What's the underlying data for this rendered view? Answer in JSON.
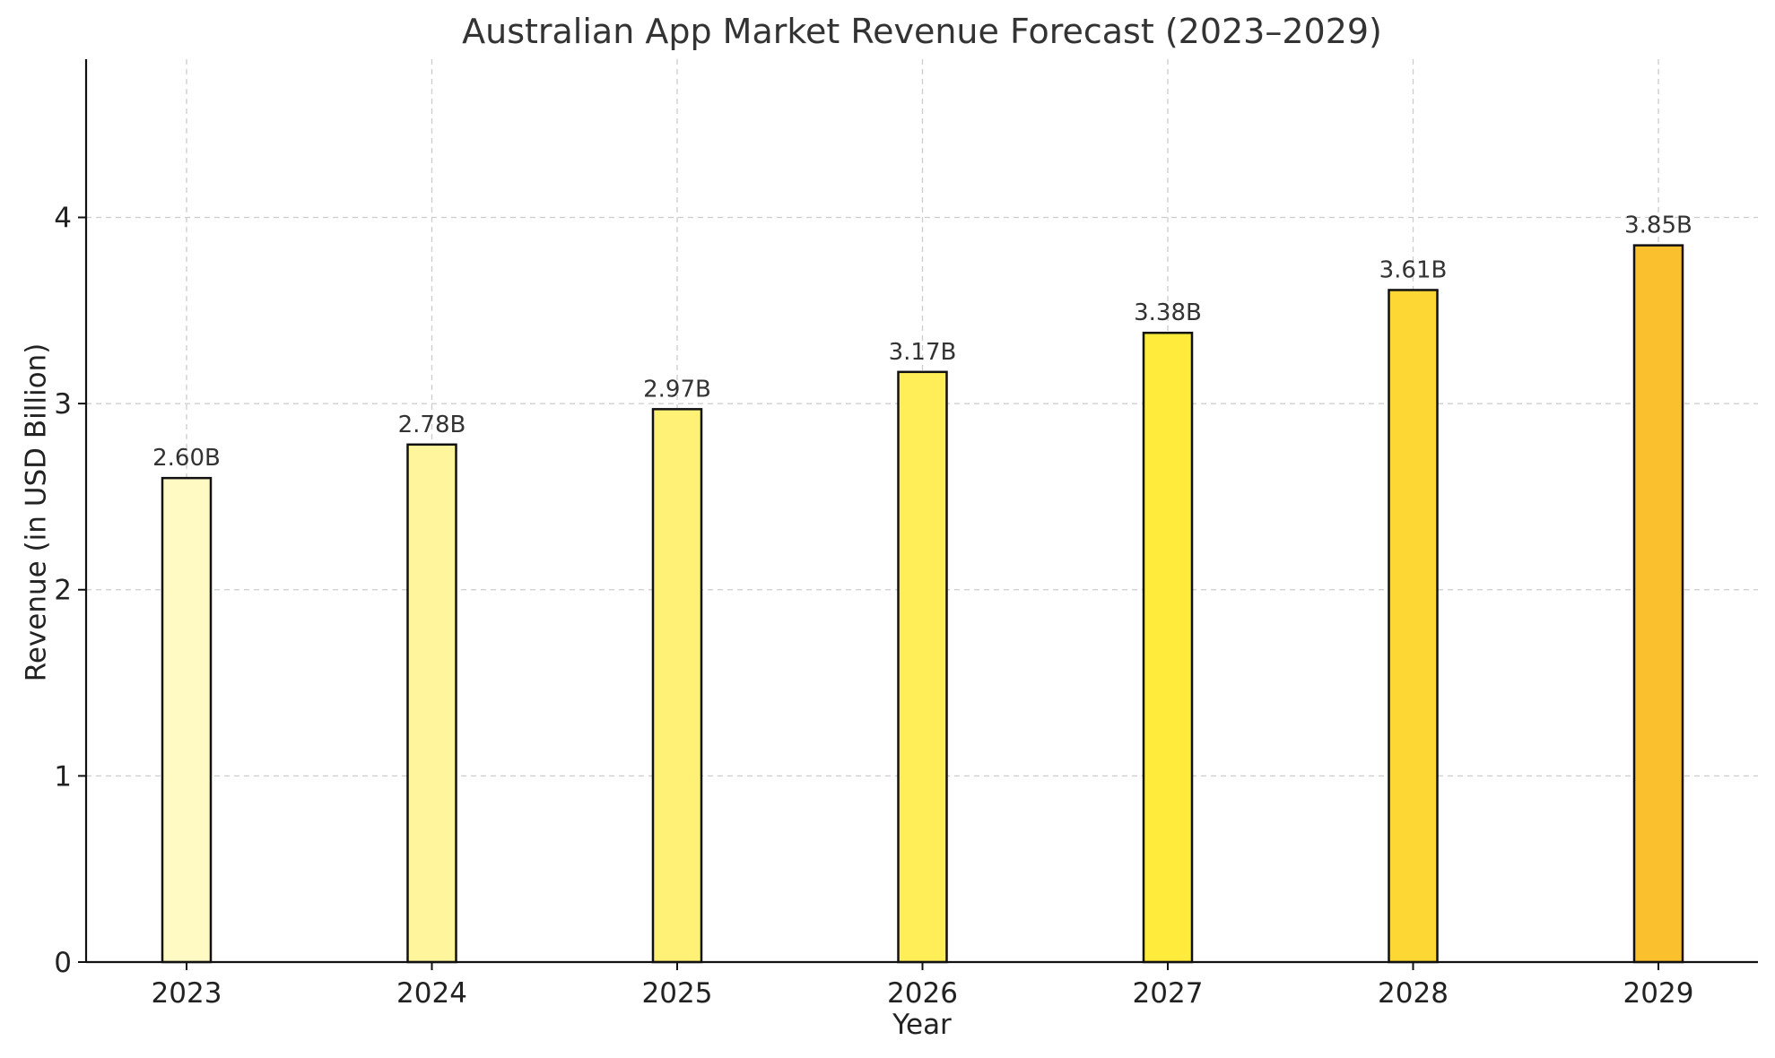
{
  "chart_data": {
    "type": "bar",
    "title": "Australian App Market Revenue Forecast (2023–2029)",
    "xlabel": "Year",
    "ylabel": "Revenue (in USD Billion)",
    "categories": [
      "2023",
      "2024",
      "2025",
      "2026",
      "2027",
      "2028",
      "2029"
    ],
    "values": [
      2.6,
      2.78,
      2.97,
      3.17,
      3.38,
      3.61,
      3.85
    ],
    "data_labels": [
      "2.60B",
      "2.78B",
      "2.97B",
      "3.17B",
      "3.38B",
      "3.61B",
      "3.85B"
    ],
    "bar_colors": [
      "#FFF9C4",
      "#FFF59D",
      "#FFF176",
      "#FFEE58",
      "#FFEB3B",
      "#FDD835",
      "#FBC02D"
    ],
    "ylim": [
      0,
      4.85
    ],
    "yticks": [
      0,
      1,
      2,
      3,
      4
    ],
    "ytick_labels": [
      "0",
      "1",
      "2",
      "3",
      "4"
    ],
    "grid": true,
    "edge_color": "#111111"
  }
}
